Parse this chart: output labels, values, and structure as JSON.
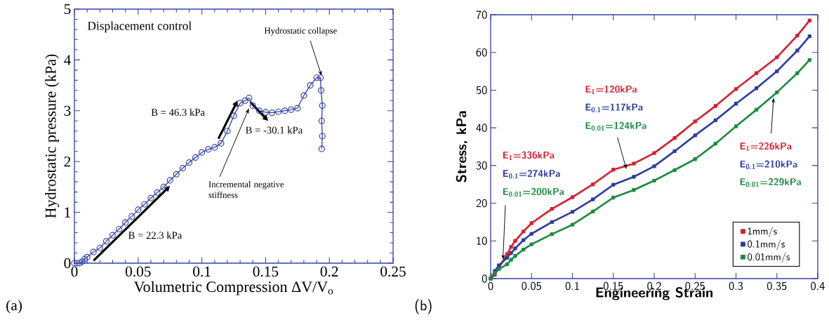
{
  "chart_data": [
    {
      "type": "line",
      "xlabel": "Volumetric Compression ΔV/V$_{o}$",
      "ylabel": "Hydrostatic pressure (kPa)",
      "xlim": [
        0,
        0.25
      ],
      "ylim": [
        0,
        5
      ],
      "xticks": [
        0,
        0.05,
        0.1,
        0.15,
        0.2,
        0.25
      ],
      "yticks": [
        0,
        1,
        2,
        3,
        4,
        5
      ],
      "grid": false,
      "legend": false,
      "marker": "circle",
      "line_style": "solid",
      "series": [
        {
          "color": "#3444a4",
          "x": [
            0,
            0.002,
            0.004,
            0.006,
            0.008,
            0.01,
            0.015,
            0.02,
            0.025,
            0.03,
            0.035,
            0.04,
            0.045,
            0.05,
            0.055,
            0.06,
            0.065,
            0.07,
            0.075,
            0.08,
            0.085,
            0.09,
            0.095,
            0.1,
            0.105,
            0.11,
            0.115,
            0.12,
            0.125,
            0.13,
            0.134,
            0.137,
            0.14,
            0.145,
            0.15,
            0.155,
            0.16,
            0.165,
            0.17,
            0.175,
            0.18,
            0.185,
            0.19,
            0.193,
            0.1935,
            0.1945,
            0.194,
            0.1945,
            0.194
          ],
          "values": [
            0,
            0,
            0,
            0.03,
            0.08,
            0.12,
            0.22,
            0.3,
            0.43,
            0.55,
            0.67,
            0.8,
            0.92,
            1.05,
            1.16,
            1.28,
            1.39,
            1.5,
            1.63,
            1.75,
            1.87,
            1.98,
            2.08,
            2.18,
            2.24,
            2.28,
            2.36,
            2.6,
            2.9,
            3.15,
            3.2,
            3.25,
            3.1,
            3.0,
            2.97,
            2.96,
            2.98,
            3.0,
            3.02,
            3.05,
            3.3,
            3.5,
            3.65,
            3.65,
            3.4,
            3.1,
            2.8,
            2.5,
            2.25
          ]
        }
      ],
      "annotations": [
        "Displacement control",
        {
          "text": "Hydrostatic collapse",
          "x": 0.194,
          "y": 3.68
        },
        "B = 46.3 kPa",
        "B = -30.1 kPa",
        {
          "text": "Incremental negative stiffness",
          "x": 0.137,
          "y": 3.05
        },
        "B = 22.3 kPa",
        "(a)"
      ]
    },
    {
      "type": "line",
      "xlabel": "Engineering Strain",
      "ylabel": "Stress, kPa",
      "xlim": [
        0,
        0.4
      ],
      "ylim": [
        0,
        70
      ],
      "xticks": [
        0,
        0.05,
        0.1,
        0.15,
        0.2,
        0.25,
        0.3,
        0.35,
        0.4
      ],
      "yticks": [
        0,
        10,
        20,
        30,
        40,
        50,
        60,
        70
      ],
      "grid": false,
      "legend": "bottom right",
      "marker": "square",
      "line_style": "solid",
      "series": [
        {
          "name": "1mm/s",
          "color": "#d42030",
          "x": [
            0,
            0.005,
            0.01,
            0.02,
            0.025,
            0.03,
            0.04,
            0.05,
            0.075,
            0.1,
            0.125,
            0.15,
            0.175,
            0.2,
            0.225,
            0.25,
            0.275,
            0.3,
            0.325,
            0.35,
            0.375,
            0.39
          ],
          "values": [
            0,
            1,
            null,
            6.5,
            8.4,
            10,
            12.5,
            14.7,
            18.5,
            21.6,
            25,
            28.9,
            30.5,
            33.3,
            37.3,
            41.7,
            45.8,
            50.3,
            54.5,
            58.7,
            64.5,
            68.5
          ]
        },
        {
          "name": "0.1mm/s",
          "color": "#2c3ea0",
          "x": [
            0,
            0.005,
            0.01,
            0.02,
            0.025,
            0.03,
            0.04,
            0.05,
            0.075,
            0.1,
            0.125,
            0.15,
            0.175,
            0.2,
            0.225,
            0.25,
            0.275,
            0.3,
            0.325,
            0.35,
            0.375,
            0.39
          ],
          "values": [
            0,
            2,
            3.5,
            5.5,
            6.8,
            8,
            10.2,
            11.9,
            15,
            17.7,
            21,
            24.9,
            27,
            29.8,
            33.8,
            38,
            42,
            46.4,
            50.5,
            55,
            60.5,
            64.3
          ]
        },
        {
          "name": "0.01mm/s",
          "color": "#1c8c40",
          "x": [
            0,
            0.005,
            0.01,
            0.02,
            0.025,
            0.03,
            0.04,
            0.05,
            0.075,
            0.1,
            0.125,
            0.15,
            0.175,
            0.2,
            0.225,
            0.25,
            0.275,
            0.3,
            0.325,
            0.35,
            0.375,
            0.39
          ],
          "values": [
            0,
            1.5,
            2.5,
            3.8,
            5,
            6,
            7.7,
            9.1,
            11.8,
            14.3,
            17.8,
            21.5,
            23.5,
            26,
            28.8,
            31.7,
            35.8,
            40.4,
            44.8,
            49.4,
            54.5,
            58
          ]
        }
      ],
      "annotations": [
        "E$_{1}$=336kPa",
        "E$_{0.1}$=274kPa",
        {
          "text": "E$_{0.01}$=200kPa",
          "x": 0.015,
          "y": 5
        },
        "E$_{1}$=120kPa",
        "E$_{0.1}$=117kPa",
        {
          "text": "E$_{0.01}$=124kPa",
          "x": 0.166,
          "y": 29
        },
        {
          "text": "E$_{1}$=226kPa",
          "x": 0.346,
          "y": 48
        },
        "E$_{0.1}$=210kPa",
        "E$_{0.01}$=229kPa",
        "(b)"
      ]
    }
  ]
}
